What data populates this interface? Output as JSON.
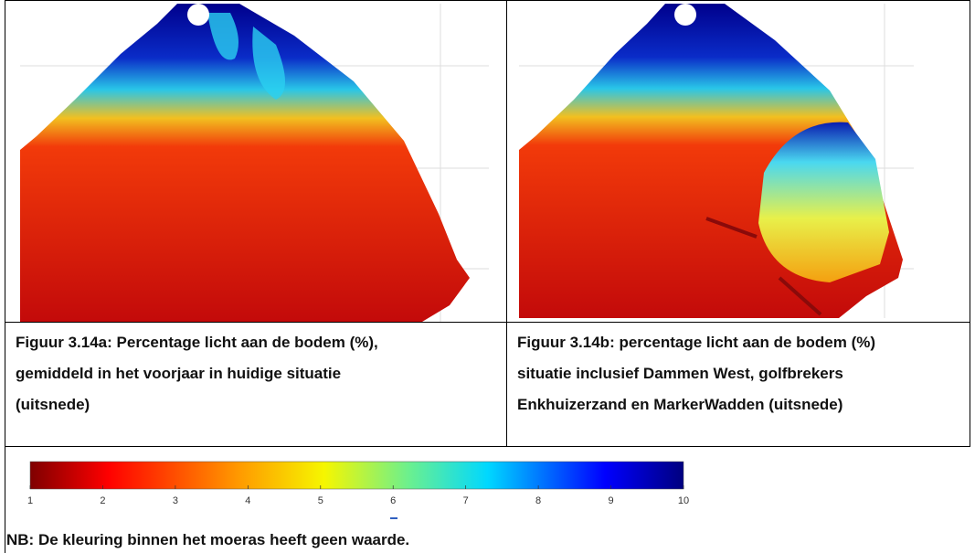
{
  "captions": {
    "left": "Figuur 3.14a: Percentage licht aan de bodem (%), gemiddeld in het voorjaar in huidige situatie (uitsnede)",
    "right": "Figuur 3.14b: percentage licht aan de bodem (%) situatie inclusief Dammen West, golfbrekers Enkhuizerzand en MarkerWadden (uitsnede)"
  },
  "colorbar": {
    "range": [
      1,
      10
    ],
    "ticks": [
      1,
      2,
      3,
      4,
      5,
      6,
      7,
      8,
      9,
      10
    ]
  },
  "note": "NB: De kleuring binnen het moeras heeft geen waarde."
}
